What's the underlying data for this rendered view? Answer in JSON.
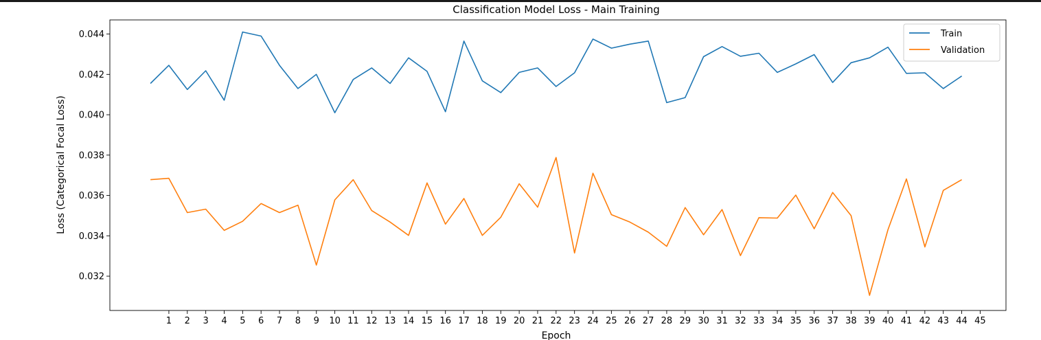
{
  "chart_data": {
    "type": "line",
    "title": "Classification Model Loss - Main Training",
    "xlabel": "Epoch",
    "ylabel": "Loss (Categorical Focal Loss)",
    "x": [
      0,
      1,
      2,
      3,
      4,
      5,
      6,
      7,
      8,
      9,
      10,
      11,
      12,
      13,
      14,
      15,
      16,
      17,
      18,
      19,
      20,
      21,
      22,
      23,
      24,
      25,
      26,
      27,
      28,
      29,
      30,
      31,
      32,
      33,
      34,
      35,
      36,
      37,
      38,
      39,
      40,
      41,
      42,
      43,
      44
    ],
    "xticks": [
      1,
      2,
      3,
      4,
      5,
      6,
      7,
      8,
      9,
      10,
      11,
      12,
      13,
      14,
      15,
      16,
      17,
      18,
      19,
      20,
      21,
      22,
      23,
      24,
      25,
      26,
      27,
      28,
      29,
      30,
      31,
      32,
      33,
      34,
      35,
      36,
      37,
      38,
      39,
      40,
      41,
      42,
      43,
      44,
      45
    ],
    "xlim": [
      -2.2,
      46.4
    ],
    "ylim": [
      0.0303,
      0.0447
    ],
    "yticks": [
      0.032,
      0.034,
      0.036,
      0.038,
      0.04,
      0.042,
      0.044
    ],
    "ytick_labels": [
      "0.032",
      "0.034",
      "0.036",
      "0.038",
      "0.040",
      "0.042",
      "0.044"
    ],
    "grid": false,
    "legend_position": "top-right",
    "series": [
      {
        "name": "Train",
        "color": "#1f77b4",
        "values": [
          0.04155,
          0.04245,
          0.04125,
          0.04218,
          0.04072,
          0.0441,
          0.0439,
          0.04245,
          0.0413,
          0.042,
          0.0401,
          0.04175,
          0.04232,
          0.04155,
          0.04282,
          0.04215,
          0.04015,
          0.04365,
          0.04168,
          0.0411,
          0.0421,
          0.04232,
          0.0414,
          0.04208,
          0.04375,
          0.0433,
          0.0435,
          0.04365,
          0.0406,
          0.04085,
          0.04288,
          0.04338,
          0.0429,
          0.04305,
          0.0421,
          0.04252,
          0.04298,
          0.0416,
          0.04258,
          0.04282,
          0.04335,
          0.04205,
          0.04208,
          0.0413,
          0.04192
        ]
      },
      {
        "name": "Validation",
        "color": "#ff7f0e",
        "values": [
          0.03678,
          0.03685,
          0.03515,
          0.03532,
          0.03427,
          0.03472,
          0.0356,
          0.03515,
          0.03552,
          0.03255,
          0.03578,
          0.03678,
          0.03525,
          0.03468,
          0.03402,
          0.03662,
          0.03458,
          0.03585,
          0.03402,
          0.03492,
          0.03658,
          0.03542,
          0.03788,
          0.03315,
          0.0371,
          0.03505,
          0.03468,
          0.03418,
          0.03348,
          0.0354,
          0.03405,
          0.0353,
          0.03302,
          0.0349,
          0.03488,
          0.03602,
          0.03435,
          0.03615,
          0.035,
          0.03105,
          0.0343,
          0.03682,
          0.03345,
          0.03625,
          0.03678
        ]
      }
    ]
  }
}
